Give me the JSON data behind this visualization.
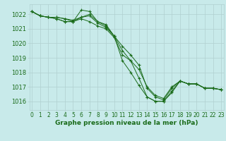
{
  "bg_color": "#c8eaea",
  "grid_color": "#b0d0d0",
  "line_color": "#1a6b1a",
  "marker_color": "#1a6b1a",
  "xlabel": "Graphe pression niveau de la mer (hPa)",
  "xlabel_fontsize": 6.5,
  "ytick_fontsize": 6,
  "xtick_fontsize": 5.5,
  "yticks": [
    1016,
    1017,
    1018,
    1019,
    1020,
    1021,
    1022
  ],
  "xticks": [
    0,
    1,
    2,
    3,
    4,
    5,
    6,
    7,
    8,
    9,
    10,
    11,
    12,
    13,
    14,
    15,
    16,
    17,
    18,
    19,
    20,
    21,
    22,
    23
  ],
  "ylim": [
    1015.4,
    1022.7
  ],
  "xlim": [
    -0.3,
    23.3
  ],
  "series": [
    {
      "x": [
        0,
        1,
        2,
        3,
        4,
        5,
        6,
        7,
        8,
        9,
        10,
        11,
        12,
        13,
        14,
        15,
        16,
        17,
        18,
        19,
        20,
        21,
        22,
        23
      ],
      "y": [
        1022.2,
        1021.9,
        1021.8,
        1021.8,
        1021.7,
        1021.5,
        1022.3,
        1022.2,
        1021.5,
        1021.2,
        1020.5,
        1019.8,
        1019.2,
        1018.5,
        1016.9,
        1016.3,
        1016.1,
        1016.9,
        1017.4,
        1017.2,
        1017.2,
        1016.9,
        1016.9,
        1016.8
      ]
    },
    {
      "x": [
        0,
        1,
        2,
        3,
        4,
        5,
        6,
        7,
        8,
        9,
        10,
        11,
        12,
        13,
        14,
        15,
        16,
        17,
        18,
        19,
        20,
        21,
        22,
        23
      ],
      "y": [
        1022.2,
        1021.9,
        1021.8,
        1021.8,
        1021.7,
        1021.6,
        1021.8,
        1021.9,
        1021.4,
        1021.1,
        1020.5,
        1019.5,
        1018.8,
        1018.2,
        1017.0,
        1016.4,
        1016.2,
        1017.0,
        1017.4,
        1017.2,
        1017.2,
        1016.9,
        1016.9,
        1016.8
      ]
    },
    {
      "x": [
        0,
        1,
        2,
        3,
        4,
        5,
        6,
        7,
        8,
        9,
        10,
        11,
        12,
        13,
        14,
        15,
        16,
        17,
        18,
        19,
        20,
        21,
        22,
        23
      ],
      "y": [
        1022.2,
        1021.9,
        1021.8,
        1021.7,
        1021.5,
        1021.5,
        1021.8,
        1022.0,
        1021.5,
        1021.3,
        1020.5,
        1018.8,
        1018.0,
        1017.1,
        1016.3,
        1016.0,
        1016.0,
        1016.7,
        1017.4,
        1017.2,
        1017.2,
        1016.9,
        1016.9,
        1016.8
      ]
    },
    {
      "x": [
        0,
        1,
        2,
        3,
        4,
        5,
        6,
        7,
        8,
        9,
        10,
        11,
        12,
        13,
        14,
        15,
        16,
        17,
        18,
        19,
        20,
        21,
        22,
        23
      ],
      "y": [
        1022.2,
        1021.9,
        1021.8,
        1021.7,
        1021.5,
        1021.5,
        1021.7,
        1021.5,
        1021.2,
        1021.0,
        1020.4,
        1019.2,
        1018.8,
        1017.6,
        1016.3,
        1016.0,
        1016.0,
        1016.6,
        1017.4,
        1017.2,
        1017.2,
        1016.9,
        1016.9,
        1016.8
      ]
    }
  ]
}
